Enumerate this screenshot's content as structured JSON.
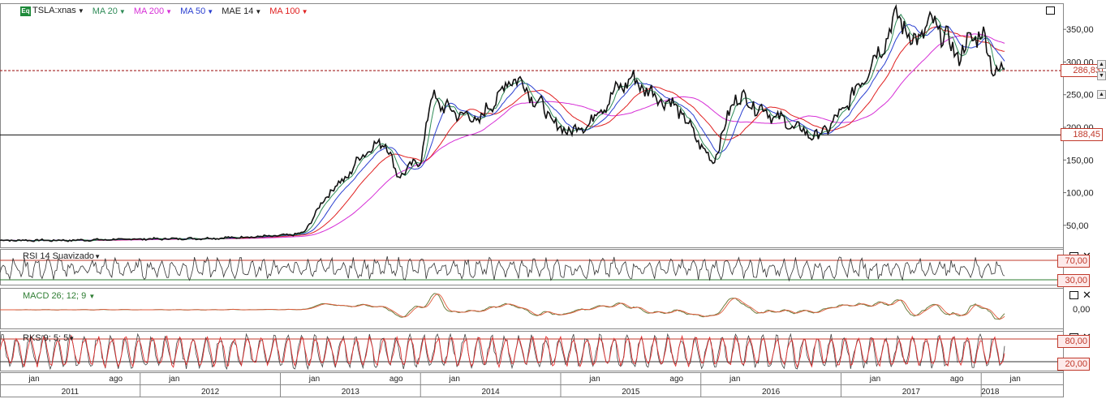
{
  "legend": {
    "symbol_icon": "Eq",
    "symbol": "TSLA:xnas",
    "indicators": [
      {
        "label": "MA 20",
        "color": "#2e8b57"
      },
      {
        "label": "MA 200",
        "color": "#d62fd6"
      },
      {
        "label": "MA 50",
        "color": "#2a3fd0"
      },
      {
        "label": "MAE 14",
        "color": "#222222"
      },
      {
        "label": "MA 100",
        "color": "#e02020"
      }
    ]
  },
  "price_axis": {
    "ticks": [
      "350,00",
      "300,00",
      "250,00",
      "200,00",
      "150,00",
      "100,00",
      "50,00"
    ],
    "current_price": "286,83",
    "hline_price": "188,45"
  },
  "panels": {
    "rsi": {
      "label": "RSI 14 Suavizado",
      "levels": [
        "70,00",
        "30,00"
      ]
    },
    "macd": {
      "label": "MACD 26; 12; 9",
      "levels": [
        "0,00"
      ]
    },
    "rks": {
      "label": "RKS 9; 5; 5",
      "levels": [
        "80,00",
        "20,00"
      ]
    }
  },
  "time_axis": {
    "months": [
      "jan",
      "ago",
      "jan",
      "jan",
      "ago",
      "jan",
      "jan",
      "ago",
      "jan",
      "jan",
      "ago",
      "jan"
    ],
    "years": [
      "2011",
      "2012",
      "2013",
      "2014",
      "2015",
      "2016",
      "2017",
      "2018"
    ]
  },
  "chart_data": {
    "type": "line",
    "title": "",
    "series": [
      {
        "name": "TSLA:xnas",
        "color": "#111111",
        "x": [
          "2011-01",
          "2011-07",
          "2012-01",
          "2012-07",
          "2013-01",
          "2013-03",
          "2013-05",
          "2013-07",
          "2013-08",
          "2013-10",
          "2013-11",
          "2014-01",
          "2014-02",
          "2014-03",
          "2014-06",
          "2014-09",
          "2014-11",
          "2015-01",
          "2015-03",
          "2015-06",
          "2015-07",
          "2015-09",
          "2015-11",
          "2016-02",
          "2016-04",
          "2016-07",
          "2016-09",
          "2016-11",
          "2017-01",
          "2017-03",
          "2017-04",
          "2017-06",
          "2017-07",
          "2017-09",
          "2017-11",
          "2018-01",
          "2018-02",
          "2018-03"
        ],
        "y": [
          27,
          27,
          29,
          30,
          34,
          38,
          97,
          130,
          160,
          180,
          125,
          150,
          250,
          230,
          210,
          280,
          240,
          195,
          200,
          260,
          275,
          250,
          230,
          145,
          250,
          220,
          200,
          185,
          220,
          280,
          310,
          375,
          330,
          360,
          310,
          350,
          290,
          286.83
        ]
      }
    ],
    "ylim": [
      20,
      385
    ],
    "hlines": [
      286.83,
      188.45
    ],
    "rsi": {
      "ylim": [
        0,
        100
      ],
      "levels": [
        70,
        30
      ]
    },
    "rks": {
      "ylim": [
        0,
        100
      ],
      "levels": [
        80,
        20
      ]
    }
  }
}
